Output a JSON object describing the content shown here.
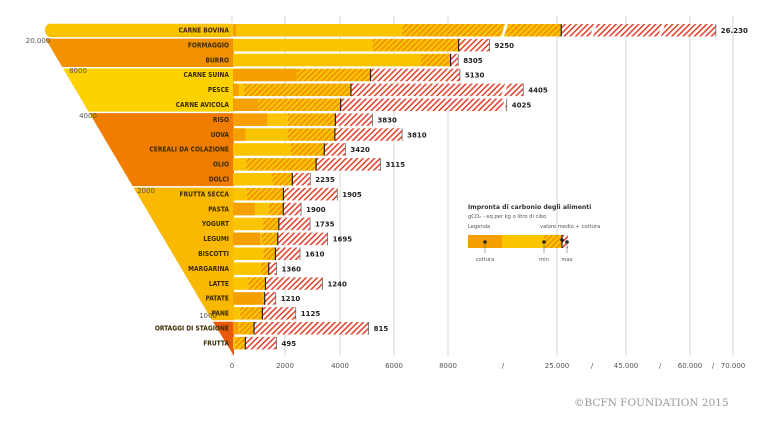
{
  "chart_data": {
    "type": "bar",
    "subtype": "range-bar (horizontal, broken axis)",
    "title": "Impronta di carbonio degli alimenti",
    "subtitle": "gCO₂ - eq per kg o litro di cibo",
    "legend": {
      "label": "Legenda",
      "placement": "right-middle",
      "items": {
        "cooking": "cottura",
        "min": "min",
        "mean": "valore medio + cottura",
        "max": "max"
      }
    },
    "x_ticks": [
      "0",
      "2000",
      "4000",
      "6000",
      "8000",
      "/",
      "25.000",
      "/",
      "45.000",
      "/",
      "60.000",
      "/",
      "70.000"
    ],
    "x_tick_values": [
      0,
      2000,
      4000,
      6000,
      8000,
      null,
      25000,
      null,
      45000,
      null,
      60000,
      null,
      70000
    ],
    "axis_break": true,
    "grid": "vertical",
    "funnel_ticks": [
      "20.000",
      "8000",
      "4000",
      "2000",
      "1000"
    ],
    "rows": [
      {
        "label": "CARNE BOVINA",
        "mean": 26230,
        "mean_label": "26.230",
        "min": 6300,
        "max": 66000,
        "cooking": 150,
        "group": 0
      },
      {
        "label": "FORMAGGIO",
        "mean": 9250,
        "mean_label": "9250",
        "min": 5200,
        "max": 14000,
        "cooking": 0,
        "group": 1
      },
      {
        "label": "BURRO",
        "mean": 8305,
        "mean_label": "8305",
        "min": 7000,
        "max": 9200,
        "cooking": 0,
        "group": 1
      },
      {
        "label": "CARNE SUINA",
        "mean": 5130,
        "mean_label": "5130",
        "min": 2400,
        "max": 9400,
        "cooking": 2400,
        "group": 2
      },
      {
        "label": "PESCE",
        "mean": 4405,
        "mean_label": "4405",
        "min": 440,
        "max": 19500,
        "cooking": 250,
        "group": 2
      },
      {
        "label": "CARNE AVICOLA",
        "mean": 4025,
        "mean_label": "4025",
        "min": 960,
        "max": 16800,
        "cooking": 960,
        "group": 2
      },
      {
        "label": "RISO",
        "mean": 3830,
        "mean_label": "3830",
        "min": 2060,
        "max": 5200,
        "cooking": 1300,
        "group": 3
      },
      {
        "label": "UOVA",
        "mean": 3810,
        "mean_label": "3810",
        "min": 2060,
        "max": 6300,
        "cooking": 500,
        "group": 3
      },
      {
        "label": "CEREALI DA COLAZIONE",
        "mean": 3420,
        "mean_label": "3420",
        "min": 2170,
        "max": 4200,
        "cooking": 0,
        "group": 3
      },
      {
        "label": "OLIO",
        "mean": 3115,
        "mean_label": "3115",
        "min": 510,
        "max": 5500,
        "cooking": 0,
        "group": 3
      },
      {
        "label": "DOLCI",
        "mean": 2235,
        "mean_label": "2235",
        "min": 1500,
        "max": 2900,
        "cooking": 0,
        "group": 3
      },
      {
        "label": "FRUTTA SECCA",
        "mean": 1905,
        "mean_label": "1905",
        "min": 540,
        "max": 3900,
        "cooking": 0,
        "group": 4
      },
      {
        "label": "PASTA",
        "mean": 1900,
        "mean_label": "1900",
        "min": 1360,
        "max": 2560,
        "cooking": 850,
        "group": 4
      },
      {
        "label": "YOGURT",
        "mean": 1735,
        "mean_label": "1735",
        "min": 1150,
        "max": 2890,
        "cooking": 0,
        "group": 4
      },
      {
        "label": "LEGUMI",
        "mean": 1695,
        "mean_label": "1695",
        "min": 1100,
        "max": 3540,
        "cooking": 1040,
        "group": 4
      },
      {
        "label": "BISCOTTI",
        "mean": 1610,
        "mean_label": "1610",
        "min": 1160,
        "max": 2520,
        "cooking": 0,
        "group": 4
      },
      {
        "label": "MARGARINA",
        "mean": 1360,
        "mean_label": "1360",
        "min": 1070,
        "max": 1650,
        "cooking": 0,
        "group": 4
      },
      {
        "label": "LATTE",
        "mean": 1240,
        "mean_label": "1240",
        "min": 600,
        "max": 3350,
        "cooking": 0,
        "group": 4
      },
      {
        "label": "PATATE",
        "mean": 1210,
        "mean_label": "1210",
        "min": 1120,
        "max": 1620,
        "cooking": 1120,
        "group": 4
      },
      {
        "label": "PANE",
        "mean": 1125,
        "mean_label": "1125",
        "min": 300,
        "max": 2360,
        "cooking": 0,
        "group": 4
      },
      {
        "label": "ORTAGGI DI STAGIONE",
        "mean": 815,
        "mean_label": "815",
        "min": 270,
        "max": 5060,
        "cooking": 230,
        "group": 5
      },
      {
        "label": "FRUTTA",
        "mean": 495,
        "mean_label": "495",
        "min": 100,
        "max": 1650,
        "cooking": 0,
        "group": 5
      }
    ]
  },
  "colors": {
    "group_fills": [
      "#f9c300",
      "#f39200",
      "#fdd200",
      "#f07d00",
      "#fbb800",
      "#e8590c"
    ],
    "bar": "#fbc400",
    "cooking": "#f5a000",
    "hatch_inner": "#f08c00",
    "hatch_outer": "#e0402a",
    "grid": "#cccccc"
  },
  "footer": {
    "copyright": "©BCFN FOUNDATION 2015"
  }
}
